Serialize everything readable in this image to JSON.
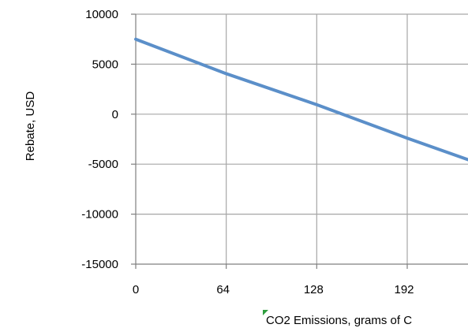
{
  "chart_data": {
    "type": "line",
    "title": "",
    "xlabel": "CO2 Emissions, grams of C",
    "ylabel": "Rebate, USD",
    "x_ticks": [
      "0",
      "64",
      "128",
      "192"
    ],
    "y_ticks": [
      "10000",
      "5000",
      "0",
      "-5000",
      "-10000",
      "-15000"
    ],
    "xlim": [
      0,
      235
    ],
    "ylim": [
      -15000,
      10000
    ],
    "grid": true,
    "legend": "none",
    "series": [
      {
        "x": [
          0,
          64,
          128,
          192,
          235
        ],
        "y": [
          7500,
          4050,
          950,
          -2400,
          -4550
        ],
        "color": "#5b8fc9"
      }
    ],
    "colors": {
      "grid": "#a6a6a6",
      "axis": "#7f7f7f",
      "marker": "#2e9e3e"
    }
  }
}
